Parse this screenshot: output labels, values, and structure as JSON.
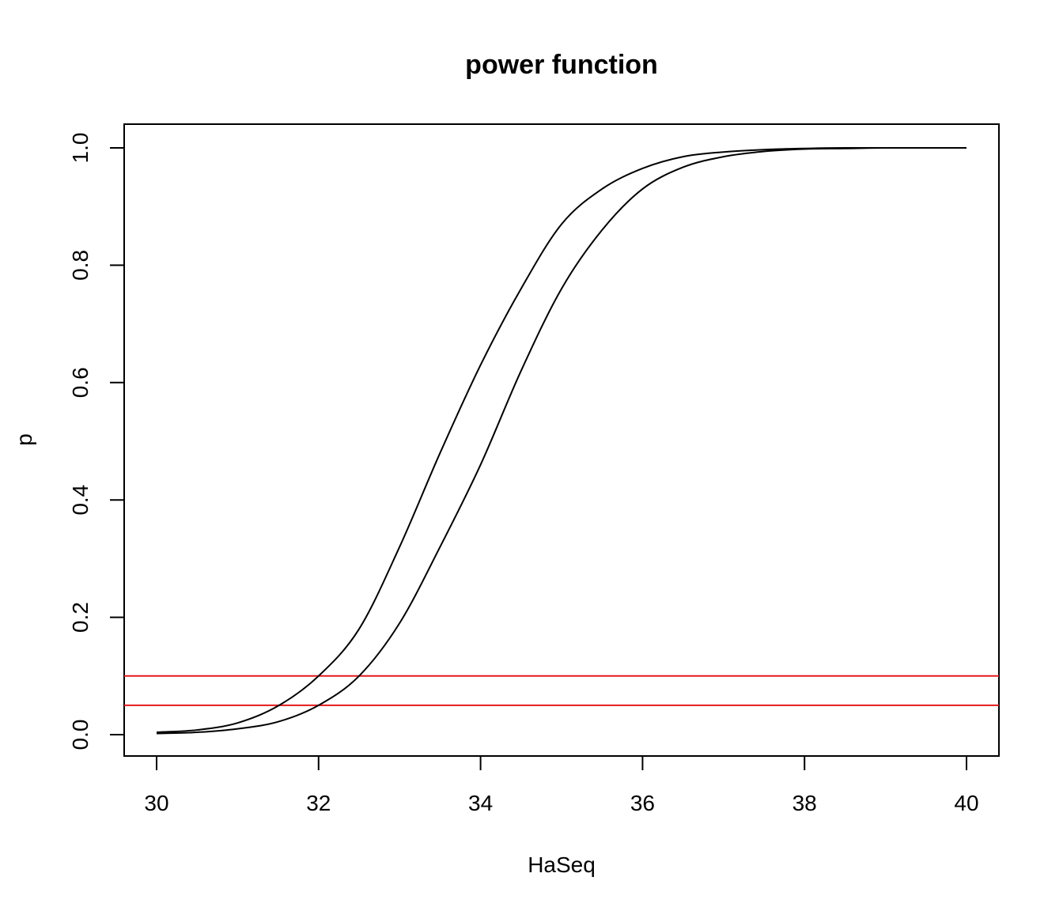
{
  "chart_data": {
    "type": "line",
    "title": "power function",
    "xlabel": "HaSeq",
    "ylabel": "p",
    "xlim": [
      30,
      40
    ],
    "ylim": [
      0,
      1
    ],
    "xticks": [
      "30",
      "32",
      "34",
      "36",
      "38",
      "40"
    ],
    "yticks": [
      "0.0",
      "0.2",
      "0.4",
      "0.6",
      "0.8",
      "1.0"
    ],
    "grid": false,
    "legend": "none",
    "series": [
      {
        "color": "#000000",
        "x": [
          30,
          30.5,
          31,
          31.5,
          32,
          32.5,
          33,
          33.5,
          34,
          34.5,
          35,
          35.5,
          36,
          36.5,
          37,
          37.5,
          38,
          38.5,
          39,
          39.5,
          40
        ],
        "y": [
          0.004,
          0.008,
          0.02,
          0.049,
          0.1,
          0.18,
          0.32,
          0.48,
          0.63,
          0.76,
          0.87,
          0.93,
          0.965,
          0.985,
          0.993,
          0.997,
          0.999,
          1.0,
          1.0,
          1.0,
          1.0
        ]
      },
      {
        "color": "#000000",
        "x": [
          30,
          30.5,
          31,
          31.5,
          32,
          32.5,
          33,
          33.5,
          34,
          34.5,
          35,
          35.5,
          36,
          36.5,
          37,
          37.5,
          38,
          38.5,
          39,
          39.5,
          40
        ],
        "y": [
          0.002,
          0.004,
          0.01,
          0.022,
          0.05,
          0.1,
          0.19,
          0.32,
          0.46,
          0.62,
          0.76,
          0.86,
          0.93,
          0.967,
          0.985,
          0.994,
          0.998,
          0.999,
          1.0,
          1.0,
          1.0
        ]
      }
    ],
    "hlines": [
      {
        "y": 0.1,
        "color": "#e31a1c"
      },
      {
        "y": 0.05,
        "color": "#e31a1c"
      }
    ]
  }
}
